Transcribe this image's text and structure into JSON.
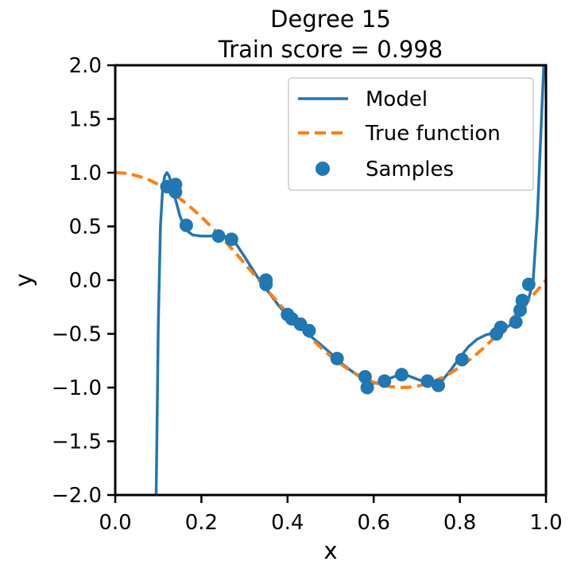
{
  "chart_data": {
    "type": "line",
    "title": [
      "Degree 15",
      "Train score = 0.998"
    ],
    "xlabel": "x",
    "ylabel": "y",
    "xlim": [
      0.0,
      1.0
    ],
    "ylim": [
      -2.0,
      2.0
    ],
    "xticks": [
      0.0,
      0.2,
      0.4,
      0.6,
      0.8,
      1.0
    ],
    "xtick_labels": [
      "0.0",
      "0.2",
      "0.4",
      "0.6",
      "0.8",
      "1.0"
    ],
    "yticks": [
      2.0,
      1.5,
      1.0,
      0.5,
      0.0,
      -0.5,
      -1.0,
      -1.5,
      -2.0
    ],
    "ytick_labels": [
      "2.0",
      "1.5",
      "1.0",
      "0.5",
      "0.0",
      "−0.5",
      "−1.0",
      "−1.5",
      "−2.0"
    ],
    "grid": false,
    "legend_position": "top-right",
    "legend": [
      {
        "label": "Model",
        "kind": "solid-line",
        "color": "#1f77b4"
      },
      {
        "label": "True function",
        "kind": "dashed-line",
        "color": "#ff7f0e"
      },
      {
        "label": "Samples",
        "kind": "marker",
        "color": "#1f77b4"
      }
    ],
    "series": [
      {
        "name": "Model",
        "style": "solid",
        "color": "#1f77b4",
        "x": [
          0.095,
          0.1,
          0.105,
          0.11,
          0.115,
          0.12,
          0.125,
          0.13,
          0.14,
          0.15,
          0.16,
          0.17,
          0.18,
          0.2,
          0.22,
          0.24,
          0.26,
          0.28,
          0.3,
          0.33,
          0.35,
          0.38,
          0.4,
          0.43,
          0.45,
          0.48,
          0.5,
          0.53,
          0.56,
          0.58,
          0.6,
          0.62,
          0.64,
          0.66,
          0.68,
          0.7,
          0.72,
          0.74,
          0.76,
          0.78,
          0.8,
          0.82,
          0.84,
          0.86,
          0.88,
          0.9,
          0.92,
          0.94,
          0.95,
          0.96,
          0.97,
          0.98,
          0.99,
          0.995
        ],
        "y": [
          -2.0,
          -0.4,
          0.5,
          0.85,
          0.97,
          1.0,
          0.97,
          0.9,
          0.75,
          0.6,
          0.5,
          0.45,
          0.42,
          0.41,
          0.41,
          0.42,
          0.4,
          0.34,
          0.22,
          0.03,
          -0.08,
          -0.24,
          -0.33,
          -0.44,
          -0.51,
          -0.61,
          -0.68,
          -0.79,
          -0.88,
          -0.93,
          -0.96,
          -0.95,
          -0.91,
          -0.88,
          -0.89,
          -0.92,
          -0.95,
          -0.96,
          -0.93,
          -0.83,
          -0.72,
          -0.62,
          -0.55,
          -0.51,
          -0.49,
          -0.46,
          -0.41,
          -0.32,
          -0.25,
          -0.17,
          -0.02,
          0.6,
          1.55,
          2.0
        ]
      },
      {
        "name": "True function",
        "style": "dashed",
        "color": "#ff7f0e",
        "function": "cos(1.5*pi*x)",
        "x": [
          0.0,
          0.02,
          0.04,
          0.06,
          0.08,
          0.1,
          0.12,
          0.14,
          0.16,
          0.18,
          0.2,
          0.22,
          0.24,
          0.26,
          0.28,
          0.3,
          0.32,
          0.34,
          0.36,
          0.38,
          0.4,
          0.42,
          0.44,
          0.46,
          0.48,
          0.5,
          0.52,
          0.54,
          0.56,
          0.58,
          0.6,
          0.62,
          0.64,
          0.66,
          0.68,
          0.7,
          0.72,
          0.74,
          0.76,
          0.78,
          0.8,
          0.82,
          0.84,
          0.86,
          0.88,
          0.9,
          0.92,
          0.94,
          0.96,
          0.98,
          1.0
        ],
        "y": [
          1.0,
          0.996,
          0.982,
          0.96,
          0.93,
          0.891,
          0.844,
          0.79,
          0.729,
          0.661,
          0.588,
          0.509,
          0.426,
          0.339,
          0.249,
          0.156,
          0.063,
          -0.031,
          -0.125,
          -0.218,
          -0.309,
          -0.397,
          -0.482,
          -0.562,
          -0.637,
          -0.707,
          -0.771,
          -0.827,
          -0.876,
          -0.918,
          -0.951,
          -0.976,
          -0.992,
          -0.999,
          -0.998,
          -0.988,
          -0.969,
          -0.941,
          -0.905,
          -0.861,
          -0.809,
          -0.75,
          -0.685,
          -0.613,
          -0.536,
          -0.454,
          -0.368,
          -0.279,
          -0.187,
          -0.094,
          0.0
        ]
      },
      {
        "name": "Samples",
        "style": "scatter",
        "color": "#1f77b4",
        "x": [
          0.12,
          0.14,
          0.14,
          0.165,
          0.24,
          0.27,
          0.35,
          0.35,
          0.4,
          0.41,
          0.43,
          0.45,
          0.515,
          0.58,
          0.585,
          0.625,
          0.665,
          0.725,
          0.75,
          0.805,
          0.885,
          0.895,
          0.93,
          0.94,
          0.945,
          0.96
        ],
        "y": [
          0.87,
          0.89,
          0.82,
          0.51,
          0.41,
          0.38,
          0.0,
          -0.04,
          -0.32,
          -0.36,
          -0.41,
          -0.47,
          -0.73,
          -0.9,
          -1.0,
          -0.94,
          -0.88,
          -0.94,
          -0.98,
          -0.74,
          -0.5,
          -0.44,
          -0.39,
          -0.28,
          -0.19,
          -0.04
        ]
      }
    ]
  }
}
